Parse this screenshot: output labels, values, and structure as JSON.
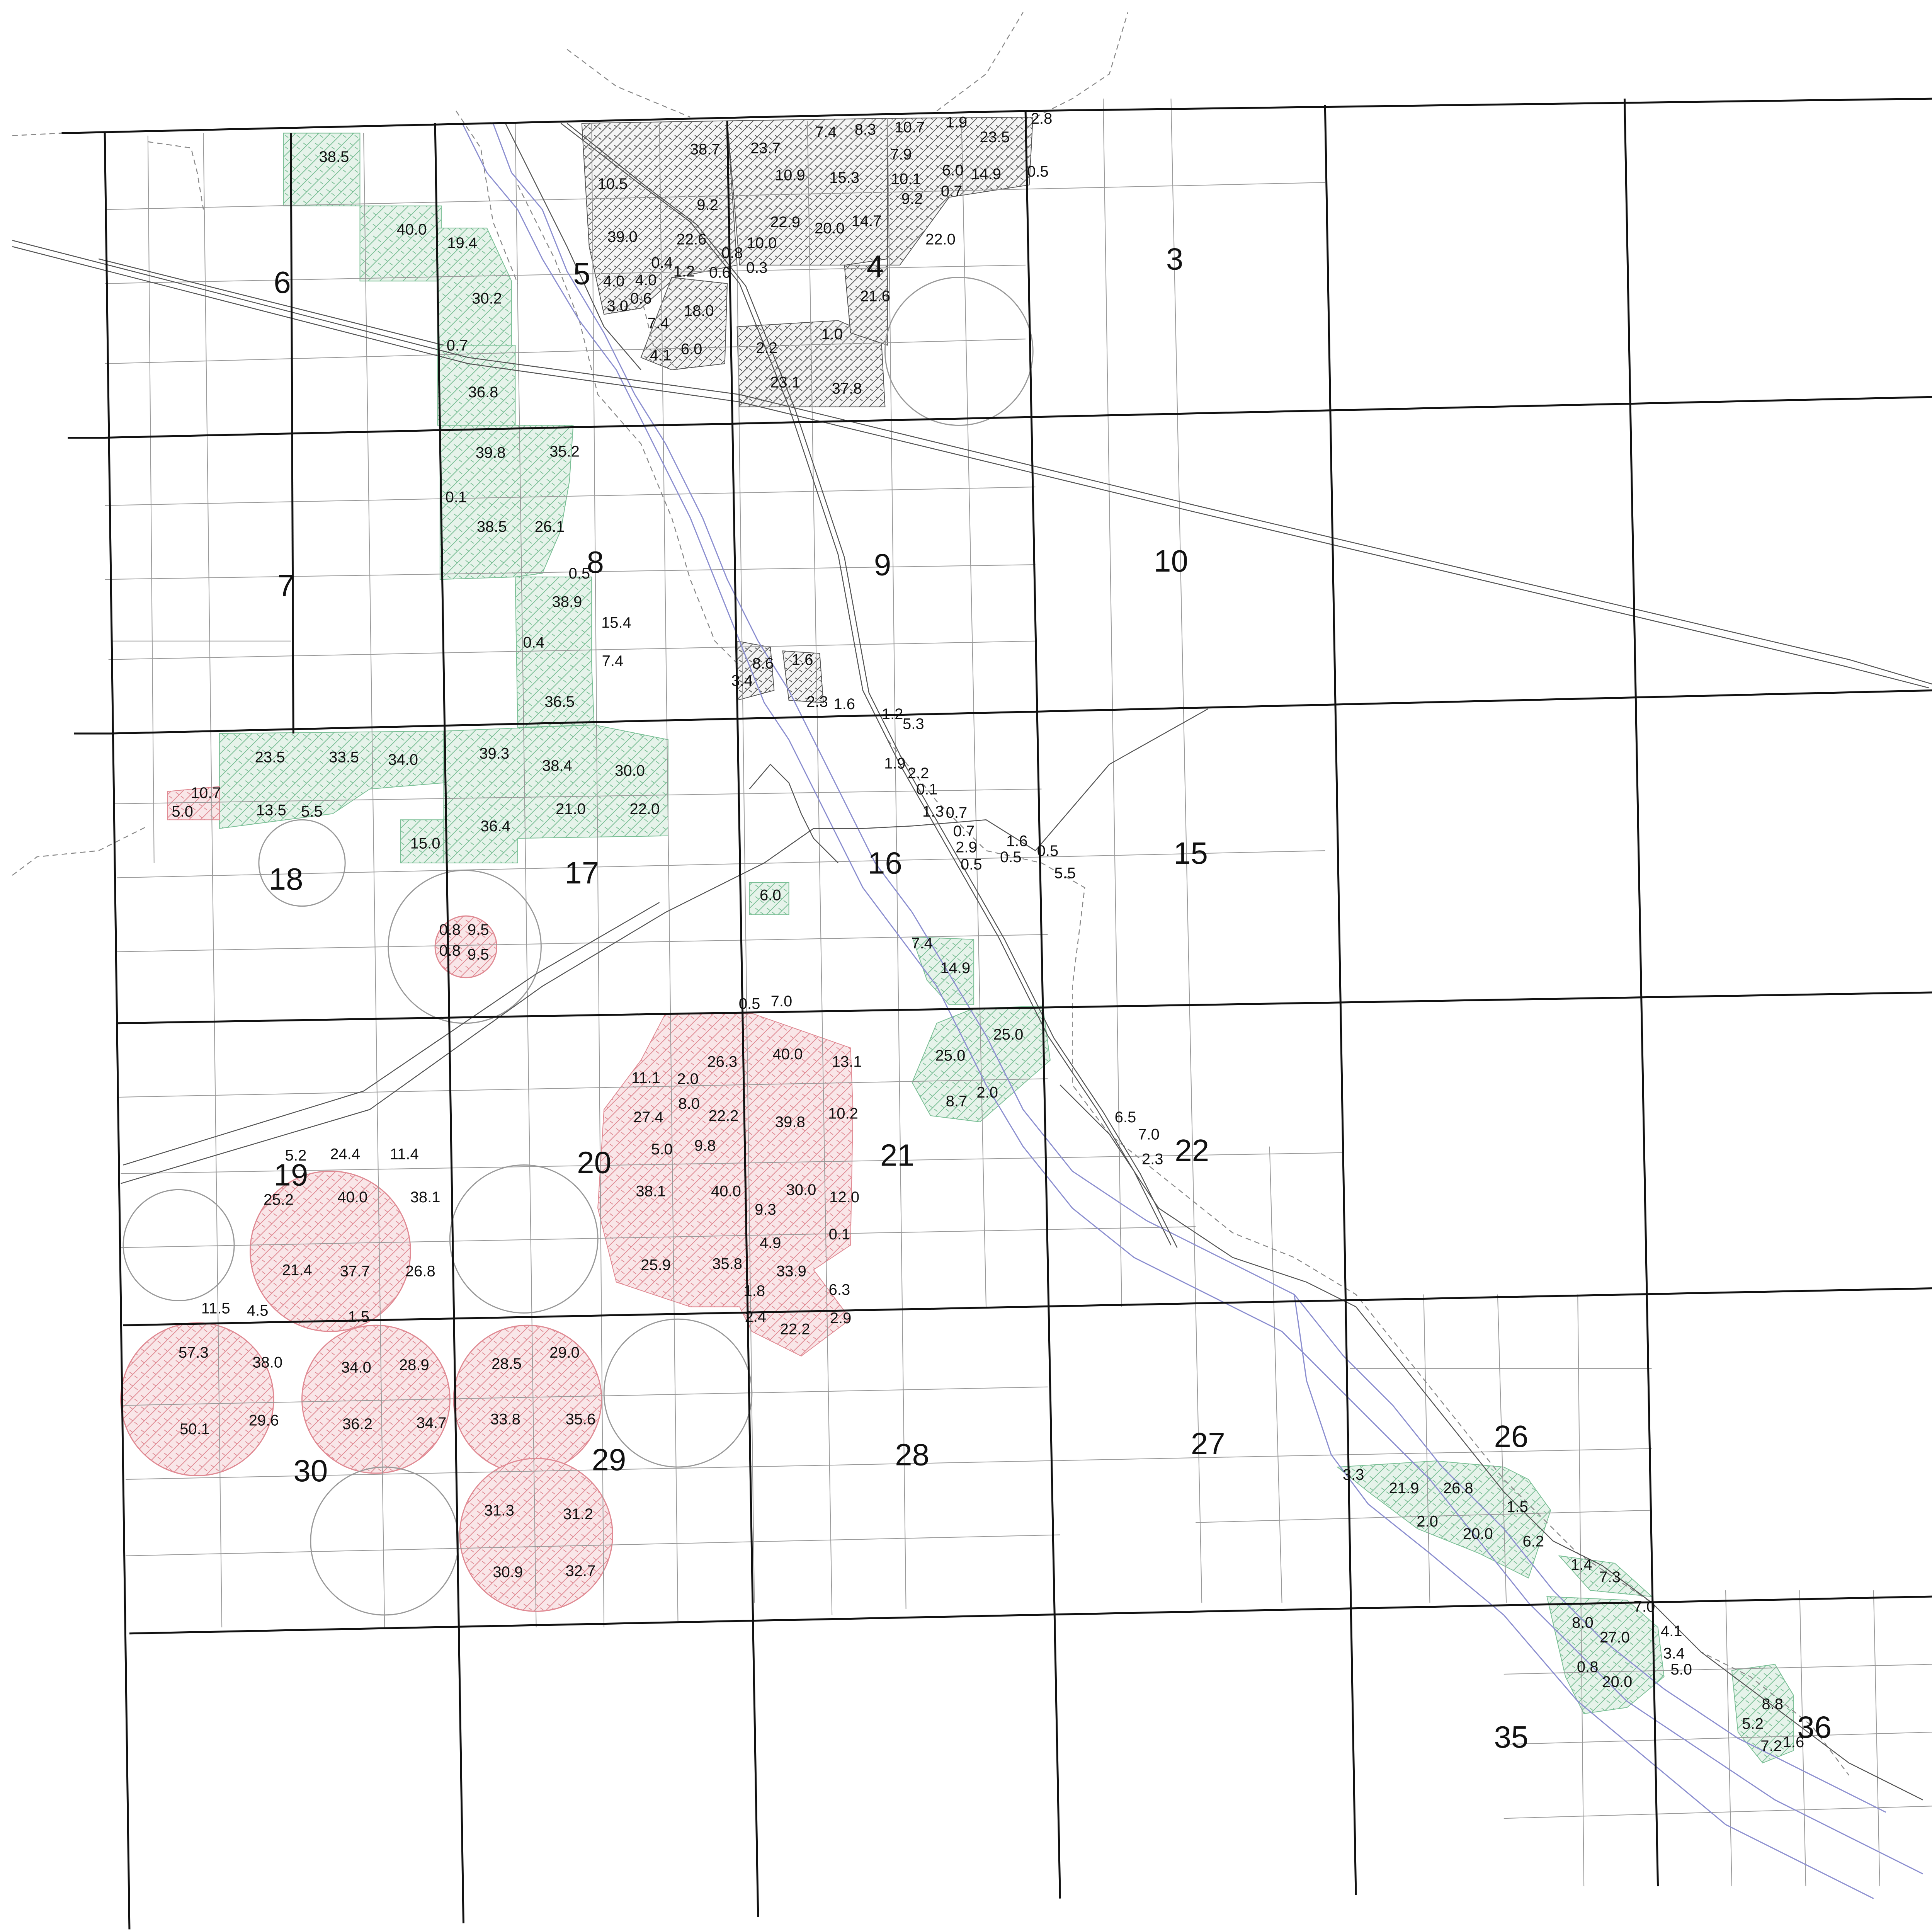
{
  "colors": {
    "green_fill": "#e6f3ea",
    "green_hatch": "#7bbf96",
    "red_fill": "#f9e6e8",
    "red_hatch": "#e08a93",
    "dark_fill": "#f2f2f2",
    "dark_hatch": "#555555",
    "section_line": "#111111",
    "quarter_line": "#999999",
    "river": "#8c8fd0",
    "road": "#555555",
    "dashed_boundary": "#888888"
  },
  "sections": [
    {
      "id": "3",
      "label": "3"
    },
    {
      "id": "4",
      "label": "4"
    },
    {
      "id": "5",
      "label": "5"
    },
    {
      "id": "6",
      "label": "6"
    },
    {
      "id": "7",
      "label": "7"
    },
    {
      "id": "8",
      "label": "8"
    },
    {
      "id": "9",
      "label": "9"
    },
    {
      "id": "10",
      "label": "10"
    },
    {
      "id": "15",
      "label": "15"
    },
    {
      "id": "16",
      "label": "16"
    },
    {
      "id": "17",
      "label": "17"
    },
    {
      "id": "18",
      "label": "18"
    },
    {
      "id": "19",
      "label": "19"
    },
    {
      "id": "20",
      "label": "20"
    },
    {
      "id": "21",
      "label": "21"
    },
    {
      "id": "22",
      "label": "22"
    },
    {
      "id": "26",
      "label": "26"
    },
    {
      "id": "27",
      "label": "27"
    },
    {
      "id": "28",
      "label": "28"
    },
    {
      "id": "29",
      "label": "29"
    },
    {
      "id": "30",
      "label": "30"
    },
    {
      "id": "35",
      "label": "35"
    },
    {
      "id": "36",
      "label": "36"
    }
  ],
  "acreage": [
    "38.5",
    "40.0",
    "19.4",
    "30.2",
    "0.7",
    "36.8",
    "38.7",
    "23.7",
    "7.4",
    "8.3",
    "10.7",
    "1.9",
    "23.5",
    "2.8",
    "0.5",
    "10.5",
    "9.2",
    "10.9",
    "15.3",
    "7.9",
    "10.1",
    "6.0",
    "14.9",
    "0.7",
    "9.2",
    "39.0",
    "22.6",
    "0.8",
    "10.0",
    "22.9",
    "20.0",
    "14.7",
    "22.0",
    "0.4",
    "1.2",
    "0.6",
    "0.3",
    "4.0",
    "4.0",
    "3.0",
    "0.6",
    "18.0",
    "21.6",
    "7.4",
    "2.2",
    "1.0",
    "4.1",
    "6.0",
    "23.1",
    "37.8",
    "39.8",
    "35.2",
    "0.1",
    "38.5",
    "26.1",
    "0.5",
    "38.9",
    "15.4",
    "0.4",
    "7.4",
    "36.5",
    "8.6",
    "1.6",
    "3.4",
    "2.3",
    "1.6",
    "1.2",
    "5.3",
    "23.5",
    "33.5",
    "34.0",
    "39.3",
    "38.4",
    "30.0",
    "10.7",
    "5.0",
    "13.5",
    "5.5",
    "21.0",
    "22.0",
    "36.4",
    "15.0",
    "1.9",
    "2.2",
    "0.1",
    "1.3",
    "0.7",
    "0.7",
    "2.9",
    "0.5",
    "1.6",
    "0.5",
    "0.5",
    "5.5",
    "6.0",
    "0.8",
    "9.5",
    "0.8",
    "9.5",
    "7.4",
    "14.9",
    "25.0",
    "25.0",
    "8.7",
    "2.0",
    "0.5",
    "7.0",
    "40.0",
    "26.3",
    "13.1",
    "11.1",
    "2.0",
    "8.0",
    "27.4",
    "22.2",
    "39.8",
    "10.2",
    "5.0",
    "9.8",
    "38.1",
    "40.0",
    "30.0",
    "12.0",
    "9.3",
    "0.1",
    "4.9",
    "25.9",
    "35.8",
    "33.9",
    "1.8",
    "6.3",
    "2.4",
    "22.2",
    "2.9",
    "6.5",
    "7.0",
    "2.3",
    "5.2",
    "24.4",
    "11.4",
    "25.2",
    "40.0",
    "38.1",
    "21.4",
    "37.7",
    "26.8",
    "11.5",
    "4.5",
    "1.5",
    "57.3",
    "38.0",
    "34.0",
    "28.9",
    "28.5",
    "29.0",
    "50.1",
    "29.6",
    "36.2",
    "34.7",
    "33.8",
    "35.6",
    "31.3",
    "31.2",
    "30.9",
    "32.7",
    "3.3",
    "21.9",
    "26.8",
    "1.5",
    "2.0",
    "20.0",
    "6.2",
    "1.4",
    "7.3",
    "7.0",
    "8.0",
    "27.0",
    "4.1",
    "3.4",
    "0.8",
    "20.0",
    "5.0",
    "8.8",
    "5.2",
    "7.2",
    "1.6"
  ]
}
